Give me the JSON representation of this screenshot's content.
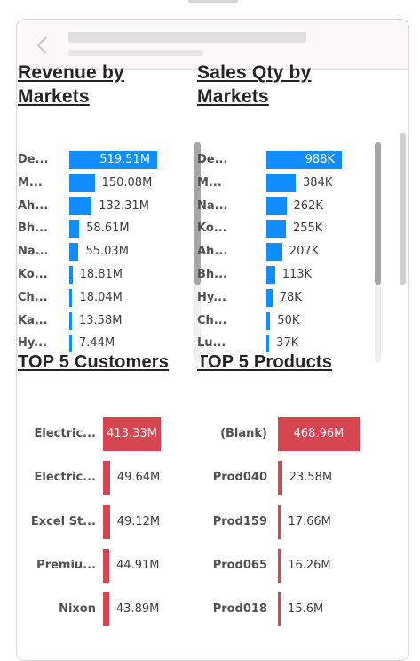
{
  "colors": {
    "blue": "#118DFF",
    "red": "#D64550",
    "text": "#252423"
  },
  "header": {
    "back_icon": "chevron-left-icon"
  },
  "revenue_by_markets": {
    "title": "Revenue by Markets",
    "chart_data": {
      "type": "bar",
      "orientation": "horizontal",
      "categories": [
        "De...",
        "M...",
        "Ah...",
        "Bh...",
        "Na...",
        "Ko...",
        "Ch...",
        "Ka...",
        "Hy..."
      ],
      "values": [
        519.51,
        150.08,
        132.31,
        58.61,
        55.03,
        18.81,
        18.04,
        13.58,
        7.44
      ],
      "labels": [
        "519.51M",
        "150.08M",
        "132.31M",
        "58.61M",
        "55.03M",
        "18.81M",
        "18.04M",
        "13.58M",
        "7.44M"
      ],
      "unit": "M"
    }
  },
  "sales_qty_by_markets": {
    "title": "Sales Qty by Markets",
    "chart_data": {
      "type": "bar",
      "orientation": "horizontal",
      "categories": [
        "De...",
        "M...",
        "Na...",
        "Ko...",
        "Ah...",
        "Bh...",
        "Hy...",
        "Ch...",
        "Lu..."
      ],
      "values": [
        988,
        384,
        262,
        255,
        207,
        113,
        78,
        50,
        37
      ],
      "labels": [
        "988K",
        "384K",
        "262K",
        "255K",
        "207K",
        "113K",
        "78K",
        "50K",
        "37K"
      ],
      "unit": "K"
    }
  },
  "top5_customers": {
    "title": "TOP 5 Customers",
    "chart_data": {
      "type": "bar",
      "orientation": "horizontal",
      "categories": [
        "Electric...",
        "Electric...",
        "Excel St...",
        "Premiu...",
        "Nixon"
      ],
      "values": [
        413.33,
        49.64,
        49.12,
        44.91,
        43.89
      ],
      "labels": [
        "413.33M",
        "49.64M",
        "49.12M",
        "44.91M",
        "43.89M"
      ],
      "unit": "M"
    }
  },
  "top5_products": {
    "title": "TOP 5 Products",
    "chart_data": {
      "type": "bar",
      "orientation": "horizontal",
      "categories": [
        "(Blank)",
        "Prod040",
        "Prod159",
        "Prod065",
        "Prod018"
      ],
      "values": [
        468.96,
        23.58,
        17.66,
        16.26,
        15.6
      ],
      "labels": [
        "468.96M",
        "23.58M",
        "17.66M",
        "16.26M",
        "15.6M"
      ],
      "unit": "M"
    }
  }
}
